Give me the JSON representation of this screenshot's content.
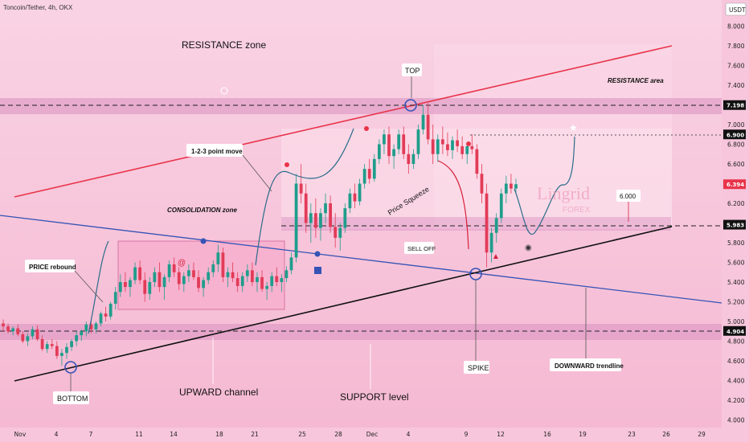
{
  "header": {
    "symbol_title": "Toncoin/Tether, 4h, OKX",
    "currency": "USDT"
  },
  "chart_data": {
    "type": "candlestick",
    "title": "Toncoin/Tether, 4h, OKX",
    "y_axis": {
      "unit": "USDT",
      "ylim": [
        3.9,
        8.3
      ],
      "ticks": [
        8.0,
        7.8,
        7.6,
        7.4,
        7.2,
        7.0,
        6.8,
        6.6,
        6.4,
        6.2,
        6.0,
        5.8,
        5.6,
        5.4,
        5.2,
        5.0,
        4.8,
        4.6,
        4.4,
        4.2,
        4.0
      ]
    },
    "x_axis": {
      "ticks": [
        "Nov",
        "4",
        "7",
        "11",
        "14",
        "18",
        "21",
        "25",
        "28",
        "Dec",
        "4",
        "9",
        "12",
        "16",
        "19",
        "23",
        "26",
        "29"
      ]
    },
    "price_tags": [
      {
        "value": 7.198,
        "label": "7.198",
        "color": "#111111"
      },
      {
        "value": 6.9,
        "label": "6.900",
        "color": "#111111"
      },
      {
        "value": 6.394,
        "label": "6.394",
        "color": "#e8334a"
      },
      {
        "value": 5.983,
        "label": "5.983",
        "color": "#111111"
      },
      {
        "value": 4.904,
        "label": "4.904",
        "color": "#111111"
      }
    ],
    "zones": [
      {
        "name": "resistance band",
        "from": 7.13,
        "to": 7.27
      },
      {
        "name": "mid band",
        "from": 5.92,
        "to": 6.04
      },
      {
        "name": "support band",
        "from": 4.83,
        "to": 4.96
      }
    ],
    "annotations": [
      "RESISTANCE zone",
      "RESISTANCE area",
      "TOP",
      "1-2-3 point move",
      "CONSOLIDATION zone",
      "Price Squeeze",
      "6.000",
      "PRICE rebound",
      "SELL OFF",
      "SPIKE",
      "BOTTOM",
      "UPWARD channel",
      "SUPPORT level",
      "DOWNWARD trendline"
    ],
    "candles": [
      [
        4.98,
        5.02,
        4.9,
        4.95
      ],
      [
        4.95,
        4.98,
        4.88,
        4.9
      ],
      [
        4.9,
        4.95,
        4.86,
        4.93
      ],
      [
        4.93,
        4.97,
        4.85,
        4.87
      ],
      [
        4.87,
        4.9,
        4.78,
        4.8
      ],
      [
        4.8,
        4.88,
        4.75,
        4.85
      ],
      [
        4.85,
        4.95,
        4.82,
        4.92
      ],
      [
        4.92,
        4.96,
        4.8,
        4.82
      ],
      [
        4.82,
        4.86,
        4.7,
        4.72
      ],
      [
        4.72,
        4.8,
        4.68,
        4.77
      ],
      [
        4.77,
        4.82,
        4.72,
        4.75
      ],
      [
        4.75,
        4.8,
        4.62,
        4.65
      ],
      [
        4.65,
        4.72,
        4.55,
        4.68
      ],
      [
        4.68,
        4.78,
        4.62,
        4.74
      ],
      [
        4.74,
        4.82,
        4.7,
        4.8
      ],
      [
        4.8,
        4.9,
        4.75,
        4.86
      ],
      [
        4.86,
        4.92,
        4.8,
        4.9
      ],
      [
        4.9,
        5.0,
        4.85,
        4.97
      ],
      [
        4.97,
        5.02,
        4.88,
        4.92
      ],
      [
        4.92,
        5.0,
        4.88,
        4.98
      ],
      [
        4.98,
        5.1,
        4.95,
        5.08
      ],
      [
        5.08,
        5.15,
        5.0,
        5.05
      ],
      [
        5.05,
        5.2,
        5.02,
        5.18
      ],
      [
        5.18,
        5.35,
        5.12,
        5.3
      ],
      [
        5.3,
        5.48,
        5.25,
        5.4
      ],
      [
        5.4,
        5.5,
        5.3,
        5.35
      ],
      [
        5.35,
        5.45,
        5.25,
        5.42
      ],
      [
        5.42,
        5.6,
        5.38,
        5.55
      ],
      [
        5.55,
        5.62,
        5.38,
        5.42
      ],
      [
        5.42,
        5.5,
        5.2,
        5.28
      ],
      [
        5.28,
        5.45,
        5.22,
        5.4
      ],
      [
        5.4,
        5.55,
        5.35,
        5.5
      ],
      [
        5.5,
        5.6,
        5.3,
        5.35
      ],
      [
        5.35,
        5.48,
        5.22,
        5.45
      ],
      [
        5.45,
        5.62,
        5.4,
        5.58
      ],
      [
        5.58,
        5.65,
        5.45,
        5.5
      ],
      [
        5.5,
        5.55,
        5.32,
        5.38
      ],
      [
        5.38,
        5.5,
        5.3,
        5.46
      ],
      [
        5.46,
        5.58,
        5.4,
        5.52
      ],
      [
        5.52,
        5.6,
        5.42,
        5.45
      ],
      [
        5.45,
        5.52,
        5.3,
        5.34
      ],
      [
        5.34,
        5.45,
        5.25,
        5.42
      ],
      [
        5.42,
        5.55,
        5.38,
        5.5
      ],
      [
        5.5,
        5.62,
        5.45,
        5.58
      ],
      [
        5.58,
        5.78,
        5.5,
        5.7
      ],
      [
        5.7,
        5.75,
        5.4,
        5.45
      ],
      [
        5.45,
        5.55,
        5.35,
        5.5
      ],
      [
        5.5,
        5.6,
        5.4,
        5.44
      ],
      [
        5.44,
        5.5,
        5.3,
        5.36
      ],
      [
        5.36,
        5.5,
        5.3,
        5.46
      ],
      [
        5.46,
        5.58,
        5.4,
        5.52
      ],
      [
        5.52,
        5.6,
        5.36,
        5.4
      ],
      [
        5.4,
        5.5,
        5.3,
        5.45
      ],
      [
        5.45,
        5.52,
        5.3,
        5.33
      ],
      [
        5.33,
        5.4,
        5.22,
        5.36
      ],
      [
        5.36,
        5.5,
        5.3,
        5.46
      ],
      [
        5.46,
        5.55,
        5.36,
        5.4
      ],
      [
        5.4,
        5.48,
        5.3,
        5.44
      ],
      [
        5.44,
        5.56,
        5.4,
        5.52
      ],
      [
        5.52,
        5.7,
        5.48,
        5.65
      ],
      [
        5.65,
        6.5,
        5.6,
        6.4
      ],
      [
        6.4,
        6.6,
        6.2,
        6.3
      ],
      [
        6.3,
        6.4,
        5.9,
        6.0
      ],
      [
        6.0,
        6.2,
        5.8,
        6.1
      ],
      [
        6.1,
        6.25,
        5.85,
        5.95
      ],
      [
        5.95,
        6.15,
        5.82,
        6.1
      ],
      [
        6.1,
        6.3,
        6.0,
        6.2
      ],
      [
        6.2,
        6.28,
        5.9,
        5.96
      ],
      [
        5.96,
        6.1,
        5.75,
        5.85
      ],
      [
        5.85,
        6.0,
        5.72,
        5.95
      ],
      [
        5.95,
        6.2,
        5.9,
        6.15
      ],
      [
        6.15,
        6.35,
        6.1,
        6.3
      ],
      [
        6.3,
        6.4,
        6.15,
        6.22
      ],
      [
        6.22,
        6.45,
        6.18,
        6.4
      ],
      [
        6.4,
        6.6,
        6.35,
        6.55
      ],
      [
        6.55,
        6.65,
        6.4,
        6.45
      ],
      [
        6.45,
        6.7,
        6.42,
        6.65
      ],
      [
        6.65,
        6.85,
        6.6,
        6.8
      ],
      [
        6.8,
        6.95,
        6.7,
        6.9
      ],
      [
        6.9,
        6.98,
        6.6,
        6.68
      ],
      [
        6.68,
        6.8,
        6.55,
        6.75
      ],
      [
        6.75,
        6.95,
        6.7,
        6.9
      ],
      [
        6.9,
        6.98,
        6.65,
        6.7
      ],
      [
        6.7,
        6.8,
        6.5,
        6.6
      ],
      [
        6.6,
        6.75,
        6.55,
        6.7
      ],
      [
        6.7,
        7.0,
        6.65,
        6.95
      ],
      [
        6.95,
        7.2,
        6.9,
        7.1
      ],
      [
        7.1,
        7.22,
        6.8,
        6.85
      ],
      [
        6.85,
        7.0,
        6.6,
        6.7
      ],
      [
        6.7,
        6.9,
        6.62,
        6.85
      ],
      [
        6.85,
        6.98,
        6.7,
        6.8
      ],
      [
        6.8,
        6.92,
        6.68,
        6.74
      ],
      [
        6.74,
        6.88,
        6.65,
        6.84
      ],
      [
        6.84,
        6.95,
        6.72,
        6.78
      ],
      [
        6.78,
        6.88,
        6.65,
        6.7
      ],
      [
        6.7,
        6.82,
        6.6,
        6.78
      ],
      [
        6.78,
        6.9,
        6.7,
        6.75
      ],
      [
        6.75,
        6.8,
        6.45,
        6.5
      ],
      [
        6.5,
        6.6,
        6.2,
        6.3
      ],
      [
        6.3,
        6.4,
        5.55,
        5.7
      ],
      [
        5.7,
        5.95,
        5.6,
        5.9
      ],
      [
        5.9,
        6.1,
        5.8,
        6.05
      ],
      [
        6.05,
        6.35,
        6.0,
        6.3
      ],
      [
        6.3,
        6.48,
        6.2,
        6.4
      ],
      [
        6.4,
        6.5,
        6.3,
        6.35
      ],
      [
        6.35,
        6.45,
        6.3,
        6.394
      ]
    ]
  }
}
